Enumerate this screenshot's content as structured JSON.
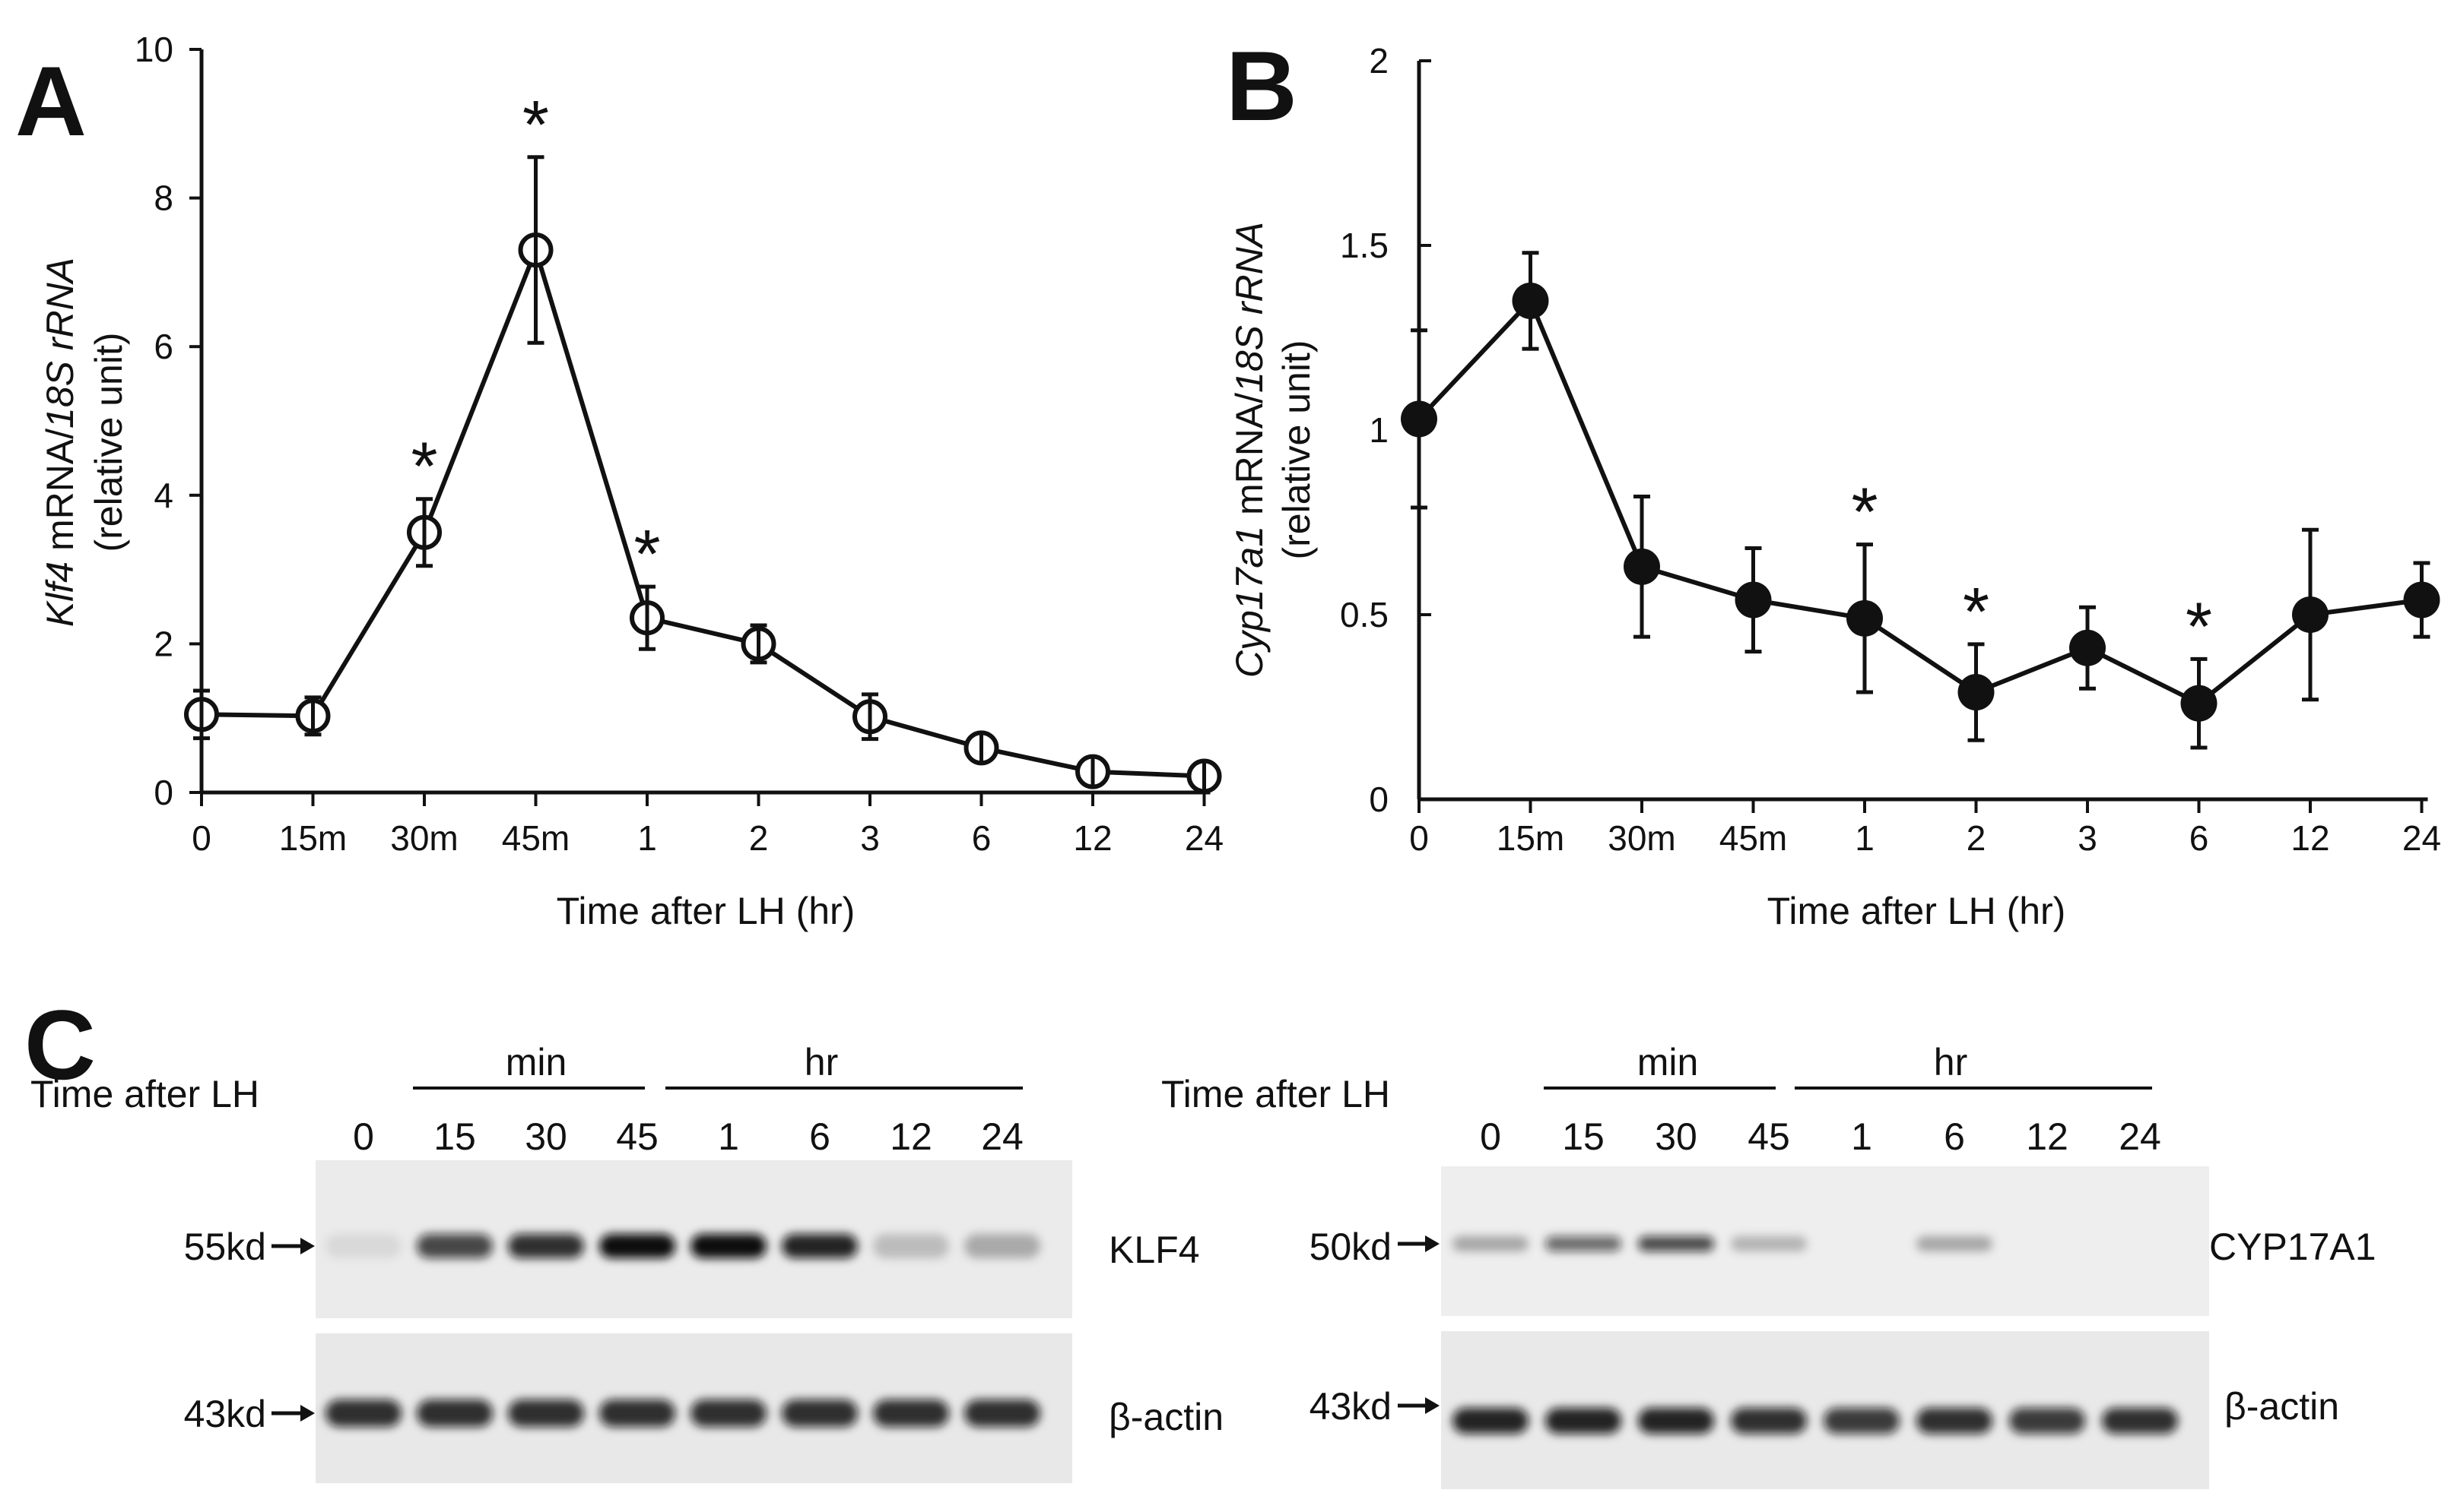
{
  "panels": {
    "a": "A",
    "b": "B",
    "c": "C"
  },
  "chart_data": [
    {
      "type": "line",
      "panel": "A",
      "categories": [
        "0",
        "15m",
        "30m",
        "45m",
        "1",
        "2",
        "3",
        "6",
        "12",
        "24"
      ],
      "values": [
        1.05,
        1.03,
        3.5,
        7.3,
        2.35,
        2.0,
        1.02,
        0.6,
        0.28,
        0.22
      ],
      "errors": [
        0.32,
        0.25,
        0.45,
        1.25,
        0.42,
        0.25,
        0.3,
        0.15,
        0.1,
        0.1
      ],
      "significant": [
        false,
        false,
        true,
        true,
        true,
        false,
        false,
        false,
        false,
        false
      ],
      "significance_marker": "*",
      "marker": "open-circle",
      "ylim": [
        0,
        10
      ],
      "yticks": [
        "0",
        "2",
        "4",
        "6",
        "8",
        "10"
      ],
      "ylabel_gene": "Klf4",
      "ylabel_mid": " mRNA/",
      "ylabel_ref": "18S rRNA",
      "ylabel_unit": "(relative unit)",
      "xlabel": "Time after LH (hr)"
    },
    {
      "type": "line",
      "panel": "B",
      "categories": [
        "0",
        "15m",
        "30m",
        "45m",
        "1",
        "2",
        "3",
        "6",
        "12",
        "24"
      ],
      "values": [
        1.03,
        1.35,
        0.63,
        0.54,
        0.49,
        0.29,
        0.41,
        0.26,
        0.5,
        0.54
      ],
      "errors": [
        0.24,
        0.13,
        0.19,
        0.14,
        0.2,
        0.13,
        0.11,
        0.12,
        0.23,
        0.1
      ],
      "significant": [
        false,
        false,
        false,
        false,
        true,
        true,
        false,
        true,
        false,
        false
      ],
      "significance_marker": "*",
      "marker": "filled-circle",
      "ylim": [
        0,
        2
      ],
      "yticks": [
        "0",
        "0.5",
        "1",
        "1.5",
        "2"
      ],
      "ylabel_gene": "Cyp17a1",
      "ylabel_mid": " mRNA/",
      "ylabel_ref": "18S rRNA",
      "ylabel_unit": "(relative unit)",
      "xlabel": "Time after LH (hr)"
    }
  ],
  "blots": [
    {
      "time_label": "Time after LH",
      "group_min": "min",
      "group_hr": "hr",
      "lanes": [
        "0",
        "15",
        "30",
        "45",
        "1",
        "6",
        "12",
        "24"
      ],
      "top": {
        "marker": "55kd",
        "protein": "KLF4",
        "intensity": [
          0.08,
          0.75,
          0.85,
          1.0,
          1.0,
          0.9,
          0.2,
          0.28
        ]
      },
      "bottom": {
        "marker": "43kd",
        "protein": "β-actin",
        "intensity": [
          0.85,
          0.85,
          0.85,
          0.85,
          0.85,
          0.85,
          0.85,
          0.85
        ]
      }
    },
    {
      "time_label": "Time after LH",
      "group_min": "min",
      "group_hr": "hr",
      "lanes": [
        "0",
        "15",
        "30",
        "45",
        "1",
        "6",
        "12",
        "24"
      ],
      "top": {
        "marker": "50kd",
        "protein": "CYP17A1",
        "intensity": [
          0.3,
          0.6,
          0.75,
          0.25,
          0.0,
          0.3,
          0.0,
          0.0
        ]
      },
      "bottom": {
        "marker": "43kd",
        "protein": "β-actin",
        "intensity": [
          0.9,
          0.9,
          0.9,
          0.85,
          0.8,
          0.85,
          0.8,
          0.85
        ]
      }
    }
  ]
}
